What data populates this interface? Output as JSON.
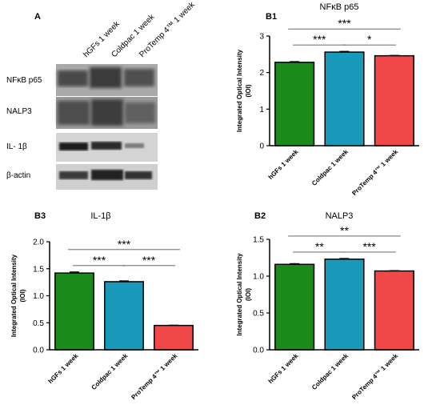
{
  "figure": {
    "blot": {
      "letter": "A",
      "lanes": [
        "hGFs 1 week",
        "Coldpac 1 week",
        "ProTemp 4™ 1 week"
      ],
      "rows": [
        "NFκB p65",
        "NALP3",
        "IL- 1β",
        "β-actin"
      ]
    }
  },
  "chart_data": [
    {
      "id": "B1",
      "type": "bar",
      "title": "NFκB p65",
      "categories": [
        "hGFs 1 week",
        "Coldpac 1 week",
        "ProTemp 4™ 1 week"
      ],
      "values": [
        2.28,
        2.56,
        2.46
      ],
      "errors": [
        0.02,
        0.02,
        0.01
      ],
      "colors": [
        "#1a8a1a",
        "#1a9aba",
        "#f04848"
      ],
      "ylabel": "Integrated Optical Intensity\n(IOI)",
      "ylim": [
        0,
        3
      ],
      "yticks": [
        "0",
        "1",
        "2",
        "3"
      ],
      "significance": [
        {
          "from": 0,
          "to": 1,
          "label": "***",
          "level": 1
        },
        {
          "from": 1,
          "to": 2,
          "label": "*",
          "level": 1
        },
        {
          "from": 0,
          "to": 2,
          "label": "***",
          "level": 2
        }
      ]
    },
    {
      "id": "B3",
      "type": "bar",
      "title": "IL-1β",
      "categories": [
        "hGFs 1 week",
        "Coldpac 1 week",
        "ProTemp 4™ 1 week"
      ],
      "values": [
        1.42,
        1.26,
        0.45
      ],
      "errors": [
        0.02,
        0.015,
        0.005
      ],
      "colors": [
        "#1a8a1a",
        "#1a9aba",
        "#f04848"
      ],
      "ylabel": "Integrated Optical Intensity\n(IOI)",
      "ylim": [
        0,
        2.0
      ],
      "yticks": [
        "0.0",
        "0.5",
        "1.0",
        "1.5",
        "2.0"
      ],
      "significance": [
        {
          "from": 0,
          "to": 1,
          "label": "***",
          "level": 1
        },
        {
          "from": 1,
          "to": 2,
          "label": "***",
          "level": 1
        },
        {
          "from": 0,
          "to": 2,
          "label": "***",
          "level": 2
        }
      ]
    },
    {
      "id": "B2",
      "type": "bar",
      "title": "NALP3",
      "categories": [
        "hGFs 1 week",
        "Coldpac 1 week",
        "ProTemp 4™ 1 week"
      ],
      "values": [
        1.16,
        1.23,
        1.07
      ],
      "errors": [
        0.01,
        0.01,
        0.005
      ],
      "colors": [
        "#1a8a1a",
        "#1a9aba",
        "#f04848"
      ],
      "ylabel": "Integrated Optical Intensity\n(IOI)",
      "ylim": [
        0,
        1.5
      ],
      "yticks": [
        "0.0",
        "0.5",
        "1.0",
        "1.5"
      ],
      "significance": [
        {
          "from": 0,
          "to": 1,
          "label": "**",
          "level": 1
        },
        {
          "from": 1,
          "to": 2,
          "label": "***",
          "level": 1
        },
        {
          "from": 0,
          "to": 2,
          "label": "**",
          "level": 2
        }
      ]
    }
  ]
}
